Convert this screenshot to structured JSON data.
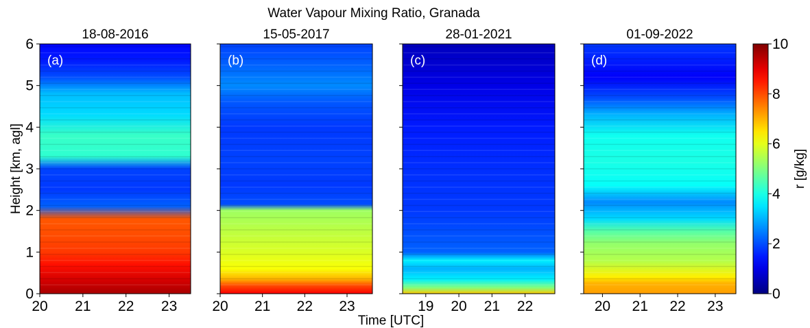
{
  "figure": {
    "suptitle": "Water Vapour Mixing Ratio, Granada",
    "shared_xlabel": "Time [UTC]",
    "shared_ylabel": "Height [km, agl]"
  },
  "chart_data": [
    {
      "type": "heatmap",
      "title": "18-08-2016",
      "panel_label": "(a)",
      "xlim": [
        20.0,
        23.5
      ],
      "xticks": [
        20,
        21,
        22,
        23
      ],
      "xticklabels": [
        "20",
        "21",
        "22",
        "23"
      ],
      "ylim": [
        0,
        6
      ],
      "yticks": [
        0,
        1,
        2,
        3,
        4,
        5,
        6
      ],
      "yticklabels": [
        "0",
        "1",
        "2",
        "3",
        "4",
        "5",
        "6"
      ],
      "xlabel": "",
      "ylabel": "Height [km, agl]",
      "profile": [
        {
          "h": 0.0,
          "r": 9.6
        },
        {
          "h": 0.3,
          "r": 9.2
        },
        {
          "h": 0.7,
          "r": 8.6
        },
        {
          "h": 1.0,
          "r": 8.2
        },
        {
          "h": 1.4,
          "r": 8.0
        },
        {
          "h": 1.8,
          "r": 7.9
        },
        {
          "h": 2.1,
          "r": 2.2
        },
        {
          "h": 2.5,
          "r": 1.8
        },
        {
          "h": 3.0,
          "r": 1.9
        },
        {
          "h": 3.3,
          "r": 4.2
        },
        {
          "h": 3.8,
          "r": 4.3
        },
        {
          "h": 4.3,
          "r": 3.4
        },
        {
          "h": 4.8,
          "r": 3.1
        },
        {
          "h": 5.2,
          "r": 2.0
        },
        {
          "h": 5.6,
          "r": 1.5
        },
        {
          "h": 6.0,
          "r": 1.3
        }
      ]
    },
    {
      "type": "heatmap",
      "title": "15-05-2017",
      "panel_label": "(b)",
      "xlim": [
        20.0,
        23.6
      ],
      "xticks": [
        20,
        21,
        22,
        23
      ],
      "xticklabels": [
        "20",
        "21",
        "22",
        "23"
      ],
      "ylim": [
        0,
        6
      ],
      "yticks": [
        0,
        1,
        2,
        3,
        4,
        5,
        6
      ],
      "yticklabels": [],
      "xlabel": "",
      "ylabel": "",
      "profile": [
        {
          "h": 0.0,
          "r": 8.8
        },
        {
          "h": 0.2,
          "r": 8.0
        },
        {
          "h": 0.35,
          "r": 7.0
        },
        {
          "h": 0.6,
          "r": 6.2
        },
        {
          "h": 1.0,
          "r": 5.9
        },
        {
          "h": 1.5,
          "r": 5.6
        },
        {
          "h": 2.0,
          "r": 5.3
        },
        {
          "h": 2.15,
          "r": 2.0
        },
        {
          "h": 2.6,
          "r": 1.8
        },
        {
          "h": 3.2,
          "r": 1.9
        },
        {
          "h": 4.0,
          "r": 1.8
        },
        {
          "h": 4.6,
          "r": 2.1
        },
        {
          "h": 5.0,
          "r": 2.6
        },
        {
          "h": 5.5,
          "r": 2.2
        },
        {
          "h": 6.0,
          "r": 1.9
        }
      ]
    },
    {
      "type": "heatmap",
      "title": "28-01-2021",
      "panel_label": "(c)",
      "xlim": [
        18.3,
        22.9
      ],
      "xticks": [
        19,
        20,
        21,
        22
      ],
      "xticklabels": [
        "19",
        "20",
        "21",
        "22"
      ],
      "ylim": [
        0,
        6
      ],
      "yticks": [
        0,
        1,
        2,
        3,
        4,
        5,
        6
      ],
      "yticklabels": [],
      "xlabel": "",
      "ylabel": "",
      "profile": [
        {
          "h": 0.0,
          "r": 6.8
        },
        {
          "h": 0.15,
          "r": 5.0
        },
        {
          "h": 0.35,
          "r": 3.6
        },
        {
          "h": 0.6,
          "r": 3.0
        },
        {
          "h": 0.8,
          "r": 3.6
        },
        {
          "h": 1.0,
          "r": 2.2
        },
        {
          "h": 1.5,
          "r": 2.0
        },
        {
          "h": 2.0,
          "r": 1.8
        },
        {
          "h": 3.0,
          "r": 1.7
        },
        {
          "h": 4.0,
          "r": 1.5
        },
        {
          "h": 5.0,
          "r": 1.0
        },
        {
          "h": 6.0,
          "r": 0.6
        }
      ]
    },
    {
      "type": "heatmap",
      "title": "01-09-2022",
      "panel_label": "(d)",
      "xlim": [
        19.5,
        23.55
      ],
      "xticks": [
        20,
        21,
        22,
        23
      ],
      "xticklabels": [
        "20",
        "21",
        "22",
        "23"
      ],
      "ylim": [
        0,
        6
      ],
      "yticks": [
        0,
        1,
        2,
        3,
        4,
        5,
        6
      ],
      "yticklabels": [],
      "xlabel": "",
      "ylabel": "",
      "profile": [
        {
          "h": 0.0,
          "r": 7.2
        },
        {
          "h": 0.25,
          "r": 7.0
        },
        {
          "h": 0.4,
          "r": 6.4
        },
        {
          "h": 0.8,
          "r": 5.5
        },
        {
          "h": 1.2,
          "r": 5.2
        },
        {
          "h": 1.5,
          "r": 4.6
        },
        {
          "h": 1.8,
          "r": 3.4
        },
        {
          "h": 2.2,
          "r": 2.6
        },
        {
          "h": 2.6,
          "r": 3.8
        },
        {
          "h": 3.2,
          "r": 4.0
        },
        {
          "h": 3.8,
          "r": 3.9
        },
        {
          "h": 4.3,
          "r": 3.0
        },
        {
          "h": 4.7,
          "r": 2.0
        },
        {
          "h": 5.2,
          "r": 1.2
        },
        {
          "h": 5.7,
          "r": 1.6
        },
        {
          "h": 6.0,
          "r": 1.8
        }
      ]
    }
  ],
  "colorbar": {
    "label": "r [g/kg]",
    "colormap": "jet",
    "vmin": 0,
    "vmax": 10,
    "ticks": [
      0,
      2,
      4,
      6,
      8,
      10
    ],
    "ticklabels": [
      "0",
      "2",
      "4",
      "6",
      "8",
      "10"
    ]
  }
}
